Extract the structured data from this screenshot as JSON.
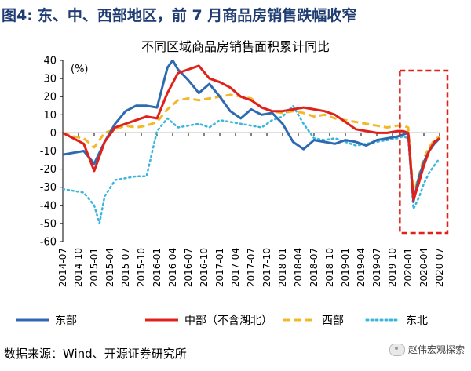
{
  "figure": {
    "prefix": "图4:",
    "title": "东、中、西部地区，前 7 月商品房销售跌幅收窄"
  },
  "footer": {
    "source": "数据来源：Wind、开源证券研究所",
    "watermark": "赵伟宏观探索"
  },
  "colors": {
    "east": "#2e6ab1",
    "central": "#e0201b",
    "west": "#f2b829",
    "northeast": "#3ab5dc",
    "highlight_box": "#e0201b"
  },
  "chart_data": {
    "type": "line",
    "title": "不同区域商品房销售面积累计同比",
    "unit": "(%)",
    "ylim": [
      -60,
      40
    ],
    "yticks": [
      40,
      30,
      20,
      10,
      0,
      -10,
      -20,
      -30,
      -40,
      -50,
      -60
    ],
    "xlim": [
      "2014-07",
      "2020-07"
    ],
    "xticks": [
      "2014-07",
      "2014-10",
      "2015-01",
      "2015-04",
      "2015-07",
      "2015-10",
      "2016-01",
      "2016-04",
      "2016-07",
      "2016-10",
      "2017-01",
      "2017-04",
      "2017-07",
      "2017-10",
      "2018-01",
      "2018-04",
      "2018-07",
      "2018-10",
      "2019-01",
      "2019-04",
      "2019-07",
      "2019-10",
      "2020-01",
      "2020-04",
      "2020-07"
    ],
    "legend_position": "bottom",
    "series": [
      {
        "name": "东部",
        "color_key": "east",
        "style": "solid",
        "x": [
          "2014-07",
          "2014-09",
          "2014-11",
          "2015-01",
          "2015-03",
          "2015-05",
          "2015-07",
          "2015-09",
          "2015-11",
          "2016-01",
          "2016-03",
          "2016-04",
          "2016-05",
          "2016-07",
          "2016-09",
          "2016-11",
          "2017-01",
          "2017-03",
          "2017-05",
          "2017-07",
          "2017-09",
          "2017-11",
          "2018-01",
          "2018-03",
          "2018-05",
          "2018-07",
          "2018-09",
          "2018-11",
          "2019-01",
          "2019-03",
          "2019-05",
          "2019-07",
          "2019-09",
          "2019-11",
          "2019-12",
          "2020-01",
          "2020-02",
          "2020-03",
          "2020-04",
          "2020-05",
          "2020-06",
          "2020-07"
        ],
        "values": [
          -12,
          -11,
          -10,
          -17,
          -5,
          5,
          12,
          15,
          15,
          14,
          36,
          40,
          35,
          29,
          22,
          27,
          20,
          12,
          8,
          13,
          10,
          11,
          5,
          -5,
          -9,
          -4,
          -5,
          -6,
          -4,
          -5,
          -7,
          -4,
          -3,
          -2,
          -1,
          0,
          -38,
          -25,
          -16,
          -10,
          -6,
          -3
        ]
      },
      {
        "name": "中部（不含湖北）",
        "color_key": "central",
        "style": "solid",
        "x": [
          "2014-07",
          "2014-09",
          "2014-11",
          "2015-01",
          "2015-03",
          "2015-05",
          "2015-07",
          "2015-09",
          "2015-11",
          "2016-01",
          "2016-03",
          "2016-05",
          "2016-07",
          "2016-09",
          "2016-11",
          "2017-01",
          "2017-03",
          "2017-05",
          "2017-07",
          "2017-09",
          "2017-11",
          "2018-01",
          "2018-03",
          "2018-05",
          "2018-07",
          "2018-09",
          "2018-11",
          "2019-01",
          "2019-03",
          "2019-05",
          "2019-07",
          "2019-09",
          "2019-11",
          "2019-12",
          "2020-01",
          "2020-02",
          "2020-03",
          "2020-04",
          "2020-05",
          "2020-06",
          "2020-07"
        ],
        "values": [
          0,
          -3,
          -6,
          -21,
          -5,
          3,
          5,
          7,
          9,
          8,
          22,
          33,
          35,
          37,
          30,
          28,
          25,
          20,
          18,
          14,
          12,
          12,
          13,
          14,
          13,
          12,
          10,
          6,
          2,
          1,
          0,
          0,
          1,
          1,
          0,
          -37,
          -28,
          -18,
          -10,
          -5,
          -3
        ]
      },
      {
        "name": "西部",
        "color_key": "west",
        "style": "dash",
        "x": [
          "2014-07",
          "2014-09",
          "2014-11",
          "2015-01",
          "2015-03",
          "2015-05",
          "2015-07",
          "2015-09",
          "2015-11",
          "2016-01",
          "2016-03",
          "2016-05",
          "2016-07",
          "2016-09",
          "2016-11",
          "2017-01",
          "2017-03",
          "2017-05",
          "2017-07",
          "2017-09",
          "2017-11",
          "2018-01",
          "2018-03",
          "2018-05",
          "2018-07",
          "2018-09",
          "2018-11",
          "2019-01",
          "2019-03",
          "2019-05",
          "2019-07",
          "2019-09",
          "2019-11",
          "2019-12",
          "2020-01",
          "2020-02",
          "2020-03",
          "2020-04",
          "2020-05",
          "2020-06",
          "2020-07"
        ],
        "values": [
          0,
          -2,
          -3,
          -8,
          0,
          2,
          4,
          3,
          4,
          6,
          13,
          18,
          19,
          18,
          19,
          20,
          21,
          20,
          19,
          14,
          12,
          11,
          12,
          11,
          9,
          10,
          8,
          7,
          6,
          5,
          4,
          3,
          4,
          4,
          3,
          -34,
          -24,
          -14,
          -8,
          -4,
          -2
        ]
      },
      {
        "name": "东北",
        "color_key": "northeast",
        "style": "dot",
        "x": [
          "2014-07",
          "2014-09",
          "2014-11",
          "2015-01",
          "2015-02",
          "2015-03",
          "2015-05",
          "2015-07",
          "2015-09",
          "2015-11",
          "2016-01",
          "2016-03",
          "2016-05",
          "2016-07",
          "2016-09",
          "2016-11",
          "2017-01",
          "2017-03",
          "2017-05",
          "2017-07",
          "2017-09",
          "2017-11",
          "2018-01",
          "2018-03",
          "2018-05",
          "2018-07",
          "2018-09",
          "2018-11",
          "2019-01",
          "2019-03",
          "2019-05",
          "2019-07",
          "2019-09",
          "2019-11",
          "2019-12",
          "2020-01",
          "2020-02",
          "2020-03",
          "2020-04",
          "2020-05",
          "2020-06",
          "2020-07"
        ],
        "values": [
          -31,
          -32,
          -33,
          -40,
          -50,
          -35,
          -26,
          -25,
          -24,
          -24,
          1,
          8,
          3,
          4,
          5,
          3,
          7,
          6,
          5,
          4,
          3,
          7,
          9,
          15,
          5,
          -3,
          -4,
          -3,
          -5,
          -7,
          -6,
          -5,
          -4,
          -3,
          -2,
          -3,
          -42,
          -36,
          -28,
          -22,
          -18,
          -14
        ]
      }
    ],
    "highlight": {
      "from": "2019-12",
      "to": "2020-07"
    }
  }
}
